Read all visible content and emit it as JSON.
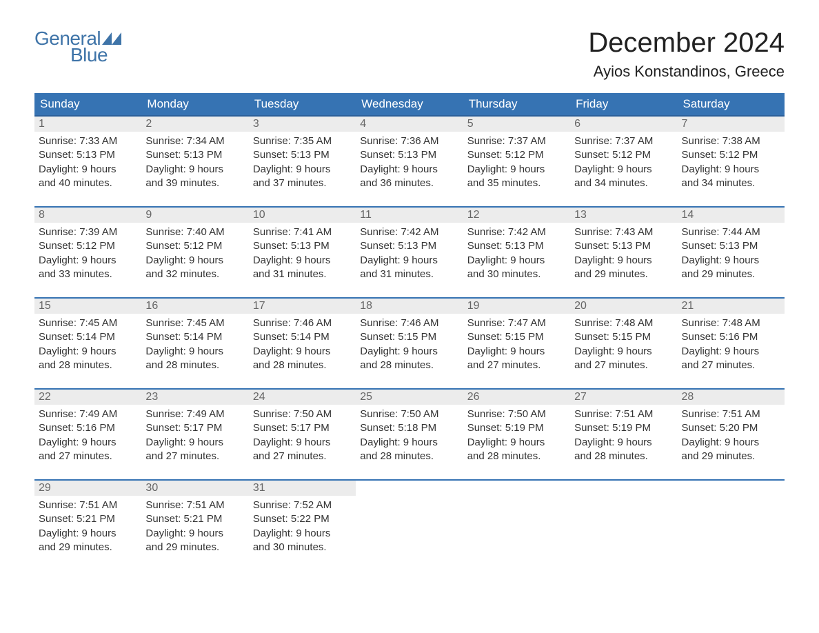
{
  "brand": {
    "general": "General",
    "blue": "Blue",
    "flag_color": "#3f74a8"
  },
  "title": "December 2024",
  "location": "Ayios Konstandinos, Greece",
  "colors": {
    "header_bg": "#3673b3",
    "header_text": "#ffffff",
    "daynum_bg": "#ececec",
    "daynum_text": "#666666",
    "body_text": "#333333",
    "row_border": "#3673b3",
    "page_bg": "#ffffff",
    "brand_color": "#3f74a8"
  },
  "typography": {
    "title_fontsize": 40,
    "location_fontsize": 22,
    "dayheader_fontsize": 17,
    "body_fontsize": 15
  },
  "calendar": {
    "type": "table",
    "day_headers": [
      "Sunday",
      "Monday",
      "Tuesday",
      "Wednesday",
      "Thursday",
      "Friday",
      "Saturday"
    ],
    "weeks": [
      [
        {
          "num": "1",
          "sunrise": "Sunrise: 7:33 AM",
          "sunset": "Sunset: 5:13 PM",
          "dl1": "Daylight: 9 hours",
          "dl2": "and 40 minutes."
        },
        {
          "num": "2",
          "sunrise": "Sunrise: 7:34 AM",
          "sunset": "Sunset: 5:13 PM",
          "dl1": "Daylight: 9 hours",
          "dl2": "and 39 minutes."
        },
        {
          "num": "3",
          "sunrise": "Sunrise: 7:35 AM",
          "sunset": "Sunset: 5:13 PM",
          "dl1": "Daylight: 9 hours",
          "dl2": "and 37 minutes."
        },
        {
          "num": "4",
          "sunrise": "Sunrise: 7:36 AM",
          "sunset": "Sunset: 5:13 PM",
          "dl1": "Daylight: 9 hours",
          "dl2": "and 36 minutes."
        },
        {
          "num": "5",
          "sunrise": "Sunrise: 7:37 AM",
          "sunset": "Sunset: 5:12 PM",
          "dl1": "Daylight: 9 hours",
          "dl2": "and 35 minutes."
        },
        {
          "num": "6",
          "sunrise": "Sunrise: 7:37 AM",
          "sunset": "Sunset: 5:12 PM",
          "dl1": "Daylight: 9 hours",
          "dl2": "and 34 minutes."
        },
        {
          "num": "7",
          "sunrise": "Sunrise: 7:38 AM",
          "sunset": "Sunset: 5:12 PM",
          "dl1": "Daylight: 9 hours",
          "dl2": "and 34 minutes."
        }
      ],
      [
        {
          "num": "8",
          "sunrise": "Sunrise: 7:39 AM",
          "sunset": "Sunset: 5:12 PM",
          "dl1": "Daylight: 9 hours",
          "dl2": "and 33 minutes."
        },
        {
          "num": "9",
          "sunrise": "Sunrise: 7:40 AM",
          "sunset": "Sunset: 5:12 PM",
          "dl1": "Daylight: 9 hours",
          "dl2": "and 32 minutes."
        },
        {
          "num": "10",
          "sunrise": "Sunrise: 7:41 AM",
          "sunset": "Sunset: 5:13 PM",
          "dl1": "Daylight: 9 hours",
          "dl2": "and 31 minutes."
        },
        {
          "num": "11",
          "sunrise": "Sunrise: 7:42 AM",
          "sunset": "Sunset: 5:13 PM",
          "dl1": "Daylight: 9 hours",
          "dl2": "and 31 minutes."
        },
        {
          "num": "12",
          "sunrise": "Sunrise: 7:42 AM",
          "sunset": "Sunset: 5:13 PM",
          "dl1": "Daylight: 9 hours",
          "dl2": "and 30 minutes."
        },
        {
          "num": "13",
          "sunrise": "Sunrise: 7:43 AM",
          "sunset": "Sunset: 5:13 PM",
          "dl1": "Daylight: 9 hours",
          "dl2": "and 29 minutes."
        },
        {
          "num": "14",
          "sunrise": "Sunrise: 7:44 AM",
          "sunset": "Sunset: 5:13 PM",
          "dl1": "Daylight: 9 hours",
          "dl2": "and 29 minutes."
        }
      ],
      [
        {
          "num": "15",
          "sunrise": "Sunrise: 7:45 AM",
          "sunset": "Sunset: 5:14 PM",
          "dl1": "Daylight: 9 hours",
          "dl2": "and 28 minutes."
        },
        {
          "num": "16",
          "sunrise": "Sunrise: 7:45 AM",
          "sunset": "Sunset: 5:14 PM",
          "dl1": "Daylight: 9 hours",
          "dl2": "and 28 minutes."
        },
        {
          "num": "17",
          "sunrise": "Sunrise: 7:46 AM",
          "sunset": "Sunset: 5:14 PM",
          "dl1": "Daylight: 9 hours",
          "dl2": "and 28 minutes."
        },
        {
          "num": "18",
          "sunrise": "Sunrise: 7:46 AM",
          "sunset": "Sunset: 5:15 PM",
          "dl1": "Daylight: 9 hours",
          "dl2": "and 28 minutes."
        },
        {
          "num": "19",
          "sunrise": "Sunrise: 7:47 AM",
          "sunset": "Sunset: 5:15 PM",
          "dl1": "Daylight: 9 hours",
          "dl2": "and 27 minutes."
        },
        {
          "num": "20",
          "sunrise": "Sunrise: 7:48 AM",
          "sunset": "Sunset: 5:15 PM",
          "dl1": "Daylight: 9 hours",
          "dl2": "and 27 minutes."
        },
        {
          "num": "21",
          "sunrise": "Sunrise: 7:48 AM",
          "sunset": "Sunset: 5:16 PM",
          "dl1": "Daylight: 9 hours",
          "dl2": "and 27 minutes."
        }
      ],
      [
        {
          "num": "22",
          "sunrise": "Sunrise: 7:49 AM",
          "sunset": "Sunset: 5:16 PM",
          "dl1": "Daylight: 9 hours",
          "dl2": "and 27 minutes."
        },
        {
          "num": "23",
          "sunrise": "Sunrise: 7:49 AM",
          "sunset": "Sunset: 5:17 PM",
          "dl1": "Daylight: 9 hours",
          "dl2": "and 27 minutes."
        },
        {
          "num": "24",
          "sunrise": "Sunrise: 7:50 AM",
          "sunset": "Sunset: 5:17 PM",
          "dl1": "Daylight: 9 hours",
          "dl2": "and 27 minutes."
        },
        {
          "num": "25",
          "sunrise": "Sunrise: 7:50 AM",
          "sunset": "Sunset: 5:18 PM",
          "dl1": "Daylight: 9 hours",
          "dl2": "and 28 minutes."
        },
        {
          "num": "26",
          "sunrise": "Sunrise: 7:50 AM",
          "sunset": "Sunset: 5:19 PM",
          "dl1": "Daylight: 9 hours",
          "dl2": "and 28 minutes."
        },
        {
          "num": "27",
          "sunrise": "Sunrise: 7:51 AM",
          "sunset": "Sunset: 5:19 PM",
          "dl1": "Daylight: 9 hours",
          "dl2": "and 28 minutes."
        },
        {
          "num": "28",
          "sunrise": "Sunrise: 7:51 AM",
          "sunset": "Sunset: 5:20 PM",
          "dl1": "Daylight: 9 hours",
          "dl2": "and 29 minutes."
        }
      ],
      [
        {
          "num": "29",
          "sunrise": "Sunrise: 7:51 AM",
          "sunset": "Sunset: 5:21 PM",
          "dl1": "Daylight: 9 hours",
          "dl2": "and 29 minutes."
        },
        {
          "num": "30",
          "sunrise": "Sunrise: 7:51 AM",
          "sunset": "Sunset: 5:21 PM",
          "dl1": "Daylight: 9 hours",
          "dl2": "and 29 minutes."
        },
        {
          "num": "31",
          "sunrise": "Sunrise: 7:52 AM",
          "sunset": "Sunset: 5:22 PM",
          "dl1": "Daylight: 9 hours",
          "dl2": "and 30 minutes."
        },
        null,
        null,
        null,
        null
      ]
    ]
  }
}
